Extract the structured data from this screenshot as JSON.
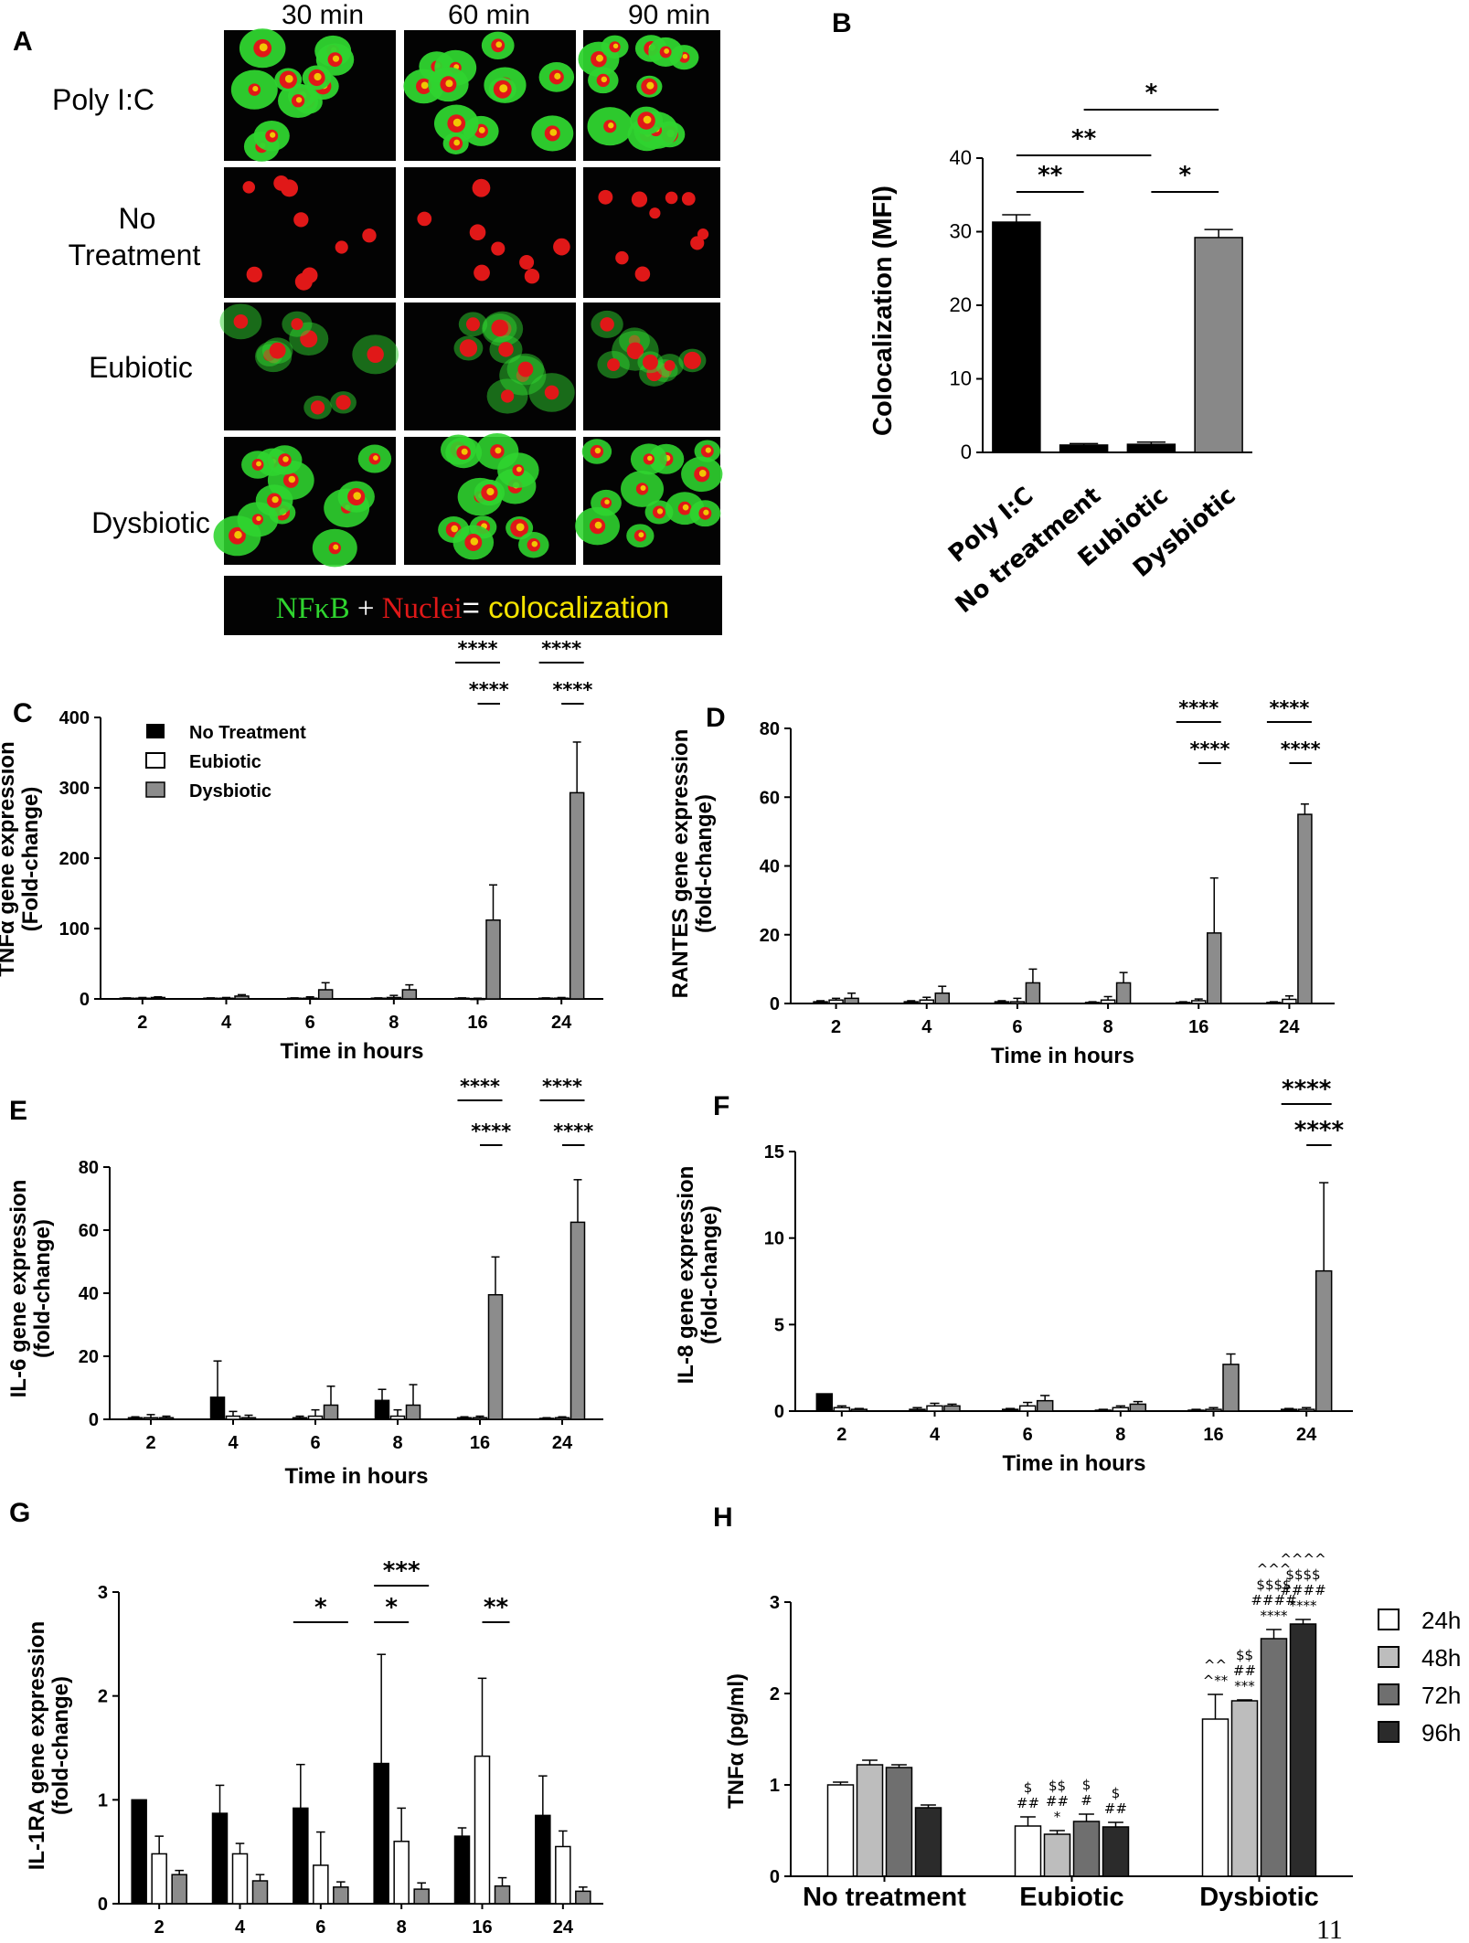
{
  "panel_letters": [
    "A",
    "B",
    "C",
    "D",
    "E",
    "F",
    "G",
    "H"
  ],
  "page_number": "11",
  "panelA": {
    "columns": [
      "30 min",
      "60 min",
      "90 min"
    ],
    "rows": [
      "Poly I:C",
      "No Treatment",
      "Eubiotic",
      "Dysbiotic"
    ],
    "row_label_lines": [
      [
        "Poly I:C"
      ],
      [
        "No",
        "Treatment"
      ],
      [
        "Eubiotic"
      ],
      [
        "Dysbiotic"
      ]
    ],
    "legend": {
      "nfkb": "NFκB",
      "plus": " + ",
      "nuclei": "Nuclei",
      "equals": "=",
      "colocalization": " colocalization"
    },
    "colors": {
      "green": "#2fd42f",
      "red": "#e01818",
      "yellow": "#f5e400",
      "background": "#030303"
    }
  },
  "chart_data": [
    {
      "panel": "B",
      "type": "bar",
      "ylabel": "Colocalization (MFI)",
      "xlabel": "",
      "ylim": [
        0,
        40
      ],
      "yticks": [
        0,
        10,
        20,
        30,
        40
      ],
      "categories": [
        "Poly I:C",
        "No treatment",
        "Eubiotic",
        "Dysbiotic"
      ],
      "values": [
        31.3,
        1.0,
        1.1,
        29.2
      ],
      "errors": [
        1.0,
        0.2,
        0.3,
        1.1
      ],
      "colors": [
        "#000000",
        "#000000",
        "#000000",
        "#888888"
      ],
      "significance": [
        {
          "from": 0,
          "to": 1,
          "label": "**",
          "level": 0
        },
        {
          "from": 2,
          "to": 3,
          "label": "*",
          "level": 0
        },
        {
          "from": 0,
          "to": 2,
          "label": "**",
          "level": 1
        },
        {
          "from": 1,
          "to": 3,
          "label": "*",
          "level": 2
        }
      ]
    },
    {
      "panel": "C",
      "type": "bar",
      "ylabel": "TNFα gene expression (Fold-change)",
      "xlabel": "Time in hours",
      "ylim": [
        0,
        400
      ],
      "yticks": [
        0,
        100,
        200,
        300,
        400
      ],
      "categories": [
        "2",
        "4",
        "6",
        "8",
        "16",
        "24"
      ],
      "legend": [
        "No Treatment",
        "Eubiotic",
        "Dysbiotic"
      ],
      "series": [
        {
          "name": "No Treatment",
          "values": [
            1,
            1,
            1,
            1,
            1,
            1
          ],
          "errors": [
            0.5,
            0.5,
            0.5,
            0.5,
            0.5,
            0.5
          ]
        },
        {
          "name": "Eubiotic",
          "values": [
            1,
            1,
            1,
            2,
            0.5,
            1
          ],
          "errors": [
            1,
            1,
            2,
            3,
            0.5,
            1
          ]
        },
        {
          "name": "Dysbiotic",
          "values": [
            2,
            4,
            13,
            13,
            112,
            293
          ],
          "errors": [
            1,
            2,
            10,
            7,
            50,
            72
          ]
        }
      ],
      "significance": [
        {
          "cat": 4,
          "label": "****",
          "type": "wide"
        },
        {
          "cat": 4,
          "label": "****",
          "type": "narrow"
        },
        {
          "cat": 5,
          "label": "****",
          "type": "wide"
        },
        {
          "cat": 5,
          "label": "****",
          "type": "narrow"
        }
      ]
    },
    {
      "panel": "D",
      "type": "bar",
      "ylabel": "RANTES gene expression (fold-change)",
      "xlabel": "Time in hours",
      "ylim": [
        0,
        80
      ],
      "yticks": [
        0,
        20,
        40,
        60,
        80
      ],
      "categories": [
        "2",
        "4",
        "6",
        "8",
        "16",
        "24"
      ],
      "series": [
        {
          "name": "No Treatment",
          "values": [
            0.5,
            0.5,
            0.5,
            0.3,
            0.3,
            0.3
          ],
          "errors": [
            0.3,
            0.3,
            0.3,
            0.2,
            0.2,
            0.2
          ]
        },
        {
          "name": "Eubiotic",
          "values": [
            1,
            1,
            0.5,
            1,
            0.8,
            1.2
          ],
          "errors": [
            0.5,
            0.8,
            1,
            1,
            0.5,
            1
          ]
        },
        {
          "name": "Dysbiotic",
          "values": [
            1.5,
            3,
            6,
            6,
            20.5,
            55
          ],
          "errors": [
            1.5,
            2,
            4,
            3,
            16,
            3
          ]
        }
      ],
      "significance": [
        {
          "cat": 4,
          "label": "****",
          "type": "wide"
        },
        {
          "cat": 4,
          "label": "****",
          "type": "narrow"
        },
        {
          "cat": 5,
          "label": "****",
          "type": "wide"
        },
        {
          "cat": 5,
          "label": "****",
          "type": "narrow"
        }
      ]
    },
    {
      "panel": "E",
      "type": "bar",
      "ylabel": "IL-6 gene expression (fold-change)",
      "xlabel": "Time in hours",
      "ylim": [
        0,
        80
      ],
      "yticks": [
        0,
        20,
        40,
        60,
        80
      ],
      "categories": [
        "2",
        "4",
        "6",
        "8",
        "16",
        "24"
      ],
      "series": [
        {
          "name": "No Treatment",
          "values": [
            0.5,
            7,
            0.5,
            6,
            0.5,
            0.3
          ],
          "errors": [
            0.3,
            11.5,
            0.5,
            3.5,
            0.3,
            0.2
          ]
        },
        {
          "name": "Eubiotic",
          "values": [
            0.5,
            1,
            1,
            1,
            0.5,
            0.5
          ],
          "errors": [
            1,
            1.5,
            2,
            2,
            0.5,
            0.3
          ]
        },
        {
          "name": "Dysbiotic",
          "values": [
            0.5,
            0.5,
            4.5,
            4.5,
            39.5,
            62.5
          ],
          "errors": [
            0.5,
            0.8,
            6,
            6.5,
            12,
            13.5
          ]
        }
      ],
      "significance": [
        {
          "cat": 4,
          "label": "****",
          "type": "wide"
        },
        {
          "cat": 4,
          "label": "****",
          "type": "narrow"
        },
        {
          "cat": 5,
          "label": "****",
          "type": "wide"
        },
        {
          "cat": 5,
          "label": "****",
          "type": "narrow"
        }
      ]
    },
    {
      "panel": "F",
      "type": "bar",
      "ylabel": "IL-8 gene expression (fold-change)",
      "xlabel": "Time in hours",
      "ylim": [
        0,
        15
      ],
      "yticks": [
        0,
        5,
        10,
        15
      ],
      "categories": [
        "2",
        "4",
        "6",
        "8",
        "16",
        "24"
      ],
      "series": [
        {
          "name": "No Treatment",
          "values": [
            1,
            0.1,
            0.1,
            0.05,
            0.05,
            0.1
          ],
          "errors": [
            0,
            0.1,
            0.05,
            0.05,
            0.05,
            0.05
          ]
        },
        {
          "name": "Eubiotic",
          "values": [
            0.2,
            0.3,
            0.3,
            0.2,
            0.1,
            0.1
          ],
          "errors": [
            0.1,
            0.15,
            0.2,
            0.1,
            0.1,
            0.1
          ]
        },
        {
          "name": "Dysbiotic",
          "values": [
            0.1,
            0.3,
            0.6,
            0.4,
            2.7,
            8.1
          ],
          "errors": [
            0.05,
            0.1,
            0.3,
            0.15,
            0.6,
            5.1
          ]
        }
      ],
      "significance": [
        {
          "cat": 5,
          "label": "****",
          "type": "wide"
        },
        {
          "cat": 5,
          "label": "****",
          "type": "narrow"
        }
      ]
    },
    {
      "panel": "G",
      "type": "bar",
      "ylabel": "IL-1RA gene expression (fold-change)",
      "xlabel": "Time in hours",
      "ylim": [
        0,
        3
      ],
      "yticks": [
        0,
        1,
        2,
        3
      ],
      "categories": [
        "2",
        "4",
        "6",
        "8",
        "16",
        "24"
      ],
      "series": [
        {
          "name": "No Treatment",
          "values": [
            1.0,
            0.87,
            0.92,
            1.35,
            0.65,
            0.85
          ],
          "errors": [
            0,
            0.27,
            0.42,
            1.05,
            0.08,
            0.38
          ]
        },
        {
          "name": "Eubiotic",
          "values": [
            0.48,
            0.48,
            0.37,
            0.6,
            1.42,
            0.55
          ],
          "errors": [
            0.17,
            0.1,
            0.32,
            0.32,
            0.75,
            0.15
          ]
        },
        {
          "name": "Dysbiotic",
          "values": [
            0.28,
            0.22,
            0.16,
            0.14,
            0.17,
            0.12
          ],
          "errors": [
            0.04,
            0.06,
            0.05,
            0.06,
            0.08,
            0.04
          ]
        }
      ],
      "significance": [
        {
          "cat": 2,
          "label": "*",
          "type": "left-right"
        },
        {
          "cat": 3,
          "label": "*",
          "type": "left-mid"
        },
        {
          "cat": 3,
          "label": "***",
          "type": "left-right"
        },
        {
          "cat": 4,
          "label": "**",
          "type": "narrow"
        }
      ]
    },
    {
      "panel": "H",
      "type": "bar",
      "ylabel": "TNFα (pg/ml)",
      "xlabel": "",
      "ylim": [
        0,
        3
      ],
      "yticks": [
        0,
        1,
        2,
        3
      ],
      "categories": [
        "No treatment",
        "Eubiotic",
        "Dysbiotic"
      ],
      "legend": [
        "24h",
        "48h",
        "72h",
        "96h"
      ],
      "series": [
        {
          "name": "24h",
          "values": [
            1.0,
            0.55,
            1.72
          ],
          "errors": [
            0.03,
            0.1,
            0.27
          ]
        },
        {
          "name": "48h",
          "values": [
            1.22,
            0.46,
            1.92
          ],
          "errors": [
            0.05,
            0.04,
            0.01
          ]
        },
        {
          "name": "72h",
          "values": [
            1.19,
            0.6,
            2.6
          ],
          "errors": [
            0.03,
            0.08,
            0.1
          ]
        },
        {
          "name": "96h",
          "values": [
            0.75,
            0.54,
            2.76
          ],
          "errors": [
            0.03,
            0.05,
            0.05
          ]
        }
      ],
      "significance_stacks": [
        {
          "cat": 1,
          "series": 0,
          "lines": [
            "$",
            "##"
          ]
        },
        {
          "cat": 1,
          "series": 1,
          "lines": [
            "$$",
            "##",
            "*"
          ]
        },
        {
          "cat": 1,
          "series": 2,
          "lines": [
            "$",
            "#"
          ]
        },
        {
          "cat": 1,
          "series": 3,
          "lines": [
            "$",
            "##"
          ]
        },
        {
          "cat": 2,
          "series": 0,
          "lines": [
            "^^",
            "^**"
          ]
        },
        {
          "cat": 2,
          "series": 1,
          "lines": [
            "$$",
            "##",
            "***"
          ]
        },
        {
          "cat": 2,
          "series": 2,
          "lines": [
            "^^^",
            "$$$$",
            "####",
            "****"
          ]
        },
        {
          "cat": 2,
          "series": 3,
          "lines": [
            "^^^^",
            "$$$$",
            "####",
            "****"
          ]
        }
      ]
    }
  ]
}
